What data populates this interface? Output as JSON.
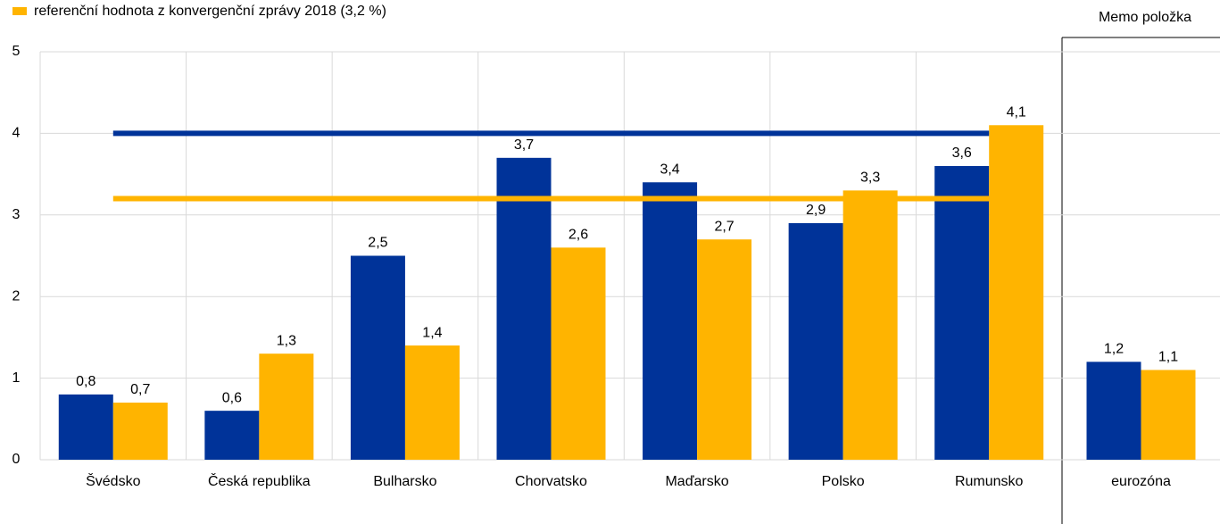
{
  "chart_data": {
    "type": "bar",
    "legend_label": "referenční hodnota z konvergenční zprávy 2018 (3,2 %)",
    "memo_label": "Memo položka",
    "categories": [
      "Švédsko",
      "Česká republika",
      "Bulharsko",
      "Chorvatsko",
      "Maďarsko",
      "Polsko",
      "Rumunsko",
      "eurozóna"
    ],
    "series": [
      {
        "color": "#003399",
        "values": [
          0.8,
          0.6,
          2.5,
          3.7,
          3.4,
          2.9,
          3.6,
          1.2
        ],
        "value_labels": [
          "0,8",
          "0,6",
          "2,5",
          "3,7",
          "3,4",
          "2,9",
          "3,6",
          "1,2"
        ]
      },
      {
        "color": "#ffb400",
        "values": [
          0.7,
          1.3,
          1.4,
          2.6,
          2.7,
          3.3,
          4.1,
          1.1
        ],
        "value_labels": [
          "0,7",
          "1,3",
          "1,4",
          "2,6",
          "2,7",
          "3,3",
          "4,1",
          "1,1"
        ]
      }
    ],
    "reference_lines": [
      {
        "color": "#003399",
        "value": 4
      },
      {
        "color": "#ffb400",
        "value": 3.2
      }
    ],
    "ylim": [
      0,
      5
    ],
    "yticks": [
      0,
      1,
      2,
      3,
      4,
      5
    ],
    "grid": true
  }
}
